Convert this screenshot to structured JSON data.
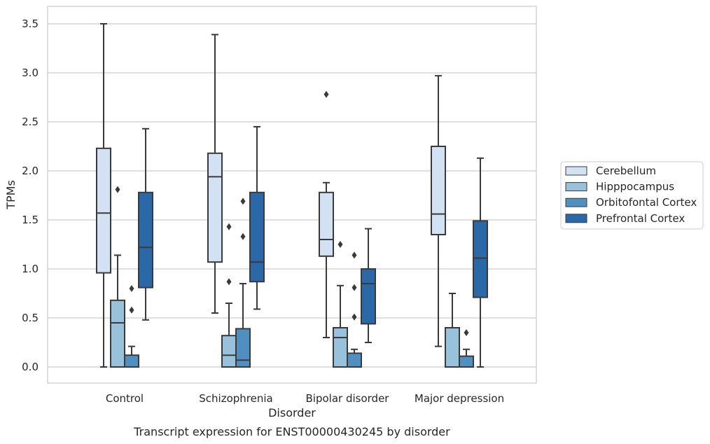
{
  "chart_data": {
    "type": "box",
    "title": "Transcript expression for ENST00000430245 by disorder",
    "xlabel": "Disorder",
    "ylabel": "TPMs",
    "ylim": [
      -0.17,
      3.68
    ],
    "yticks": [
      0.0,
      0.5,
      1.0,
      1.5,
      2.0,
      2.5,
      3.0,
      3.5
    ],
    "ytick_labels": [
      "0.0",
      "0.5",
      "1.0",
      "1.5",
      "2.0",
      "2.5",
      "3.0",
      "3.5"
    ],
    "grid": "horizontal",
    "legend_position": "right",
    "categories": [
      "Control",
      "Schizophrenia",
      "Bipolar disorder",
      "Major depression"
    ],
    "series": [
      {
        "name": "Cerebellum",
        "color": "#d3e2f2",
        "boxes": [
          {
            "whislo": 0.0,
            "q1": 0.96,
            "med": 1.57,
            "q3": 2.23,
            "whishi": 3.5,
            "fliers": []
          },
          {
            "whislo": 0.55,
            "q1": 1.07,
            "med": 1.94,
            "q3": 2.18,
            "whishi": 3.39,
            "fliers": []
          },
          {
            "whislo": 0.3,
            "q1": 1.13,
            "med": 1.3,
            "q3": 1.78,
            "whishi": 1.88,
            "fliers": [
              2.78
            ]
          },
          {
            "whislo": 0.21,
            "q1": 1.35,
            "med": 1.56,
            "q3": 2.25,
            "whishi": 2.97,
            "fliers": []
          }
        ]
      },
      {
        "name": "Hipppocampus",
        "color": "#98c2dc",
        "boxes": [
          {
            "whislo": 0.0,
            "q1": 0.0,
            "med": 0.45,
            "q3": 0.68,
            "whishi": 1.14,
            "fliers": [
              1.81
            ]
          },
          {
            "whislo": 0.0,
            "q1": 0.0,
            "med": 0.12,
            "q3": 0.32,
            "whishi": 0.65,
            "fliers": [
              0.87,
              1.43
            ]
          },
          {
            "whislo": 0.0,
            "q1": 0.0,
            "med": 0.3,
            "q3": 0.4,
            "whishi": 0.83,
            "fliers": [
              1.25
            ]
          },
          {
            "whislo": 0.0,
            "q1": 0.0,
            "med": 0.0,
            "q3": 0.4,
            "whishi": 0.75,
            "fliers": []
          }
        ]
      },
      {
        "name": "Orbitofontal Cortex",
        "color": "#5090c0",
        "boxes": [
          {
            "whislo": 0.0,
            "q1": 0.0,
            "med": 0.0,
            "q3": 0.12,
            "whishi": 0.21,
            "fliers": [
              0.58,
              0.8
            ]
          },
          {
            "whislo": 0.0,
            "q1": 0.0,
            "med": 0.07,
            "q3": 0.39,
            "whishi": 0.85,
            "fliers": [
              1.33,
              1.69
            ]
          },
          {
            "whislo": 0.0,
            "q1": 0.0,
            "med": 0.0,
            "q3": 0.14,
            "whishi": 0.18,
            "fliers": [
              0.51,
              0.81,
              1.14
            ]
          },
          {
            "whislo": 0.0,
            "q1": 0.0,
            "med": 0.0,
            "q3": 0.11,
            "whishi": 0.18,
            "fliers": [
              0.35
            ]
          }
        ]
      },
      {
        "name": "Prefrontal Cortex",
        "color": "#2a68a8",
        "boxes": [
          {
            "whislo": 0.48,
            "q1": 0.81,
            "med": 1.22,
            "q3": 1.78,
            "whishi": 2.43,
            "fliers": []
          },
          {
            "whislo": 0.59,
            "q1": 0.87,
            "med": 1.07,
            "q3": 1.78,
            "whishi": 2.45,
            "fliers": []
          },
          {
            "whislo": 0.25,
            "q1": 0.44,
            "med": 0.85,
            "q3": 1.0,
            "whishi": 1.41,
            "fliers": []
          },
          {
            "whislo": 0.0,
            "q1": 0.71,
            "med": 1.11,
            "q3": 1.49,
            "whishi": 2.13,
            "fliers": []
          }
        ]
      }
    ]
  }
}
